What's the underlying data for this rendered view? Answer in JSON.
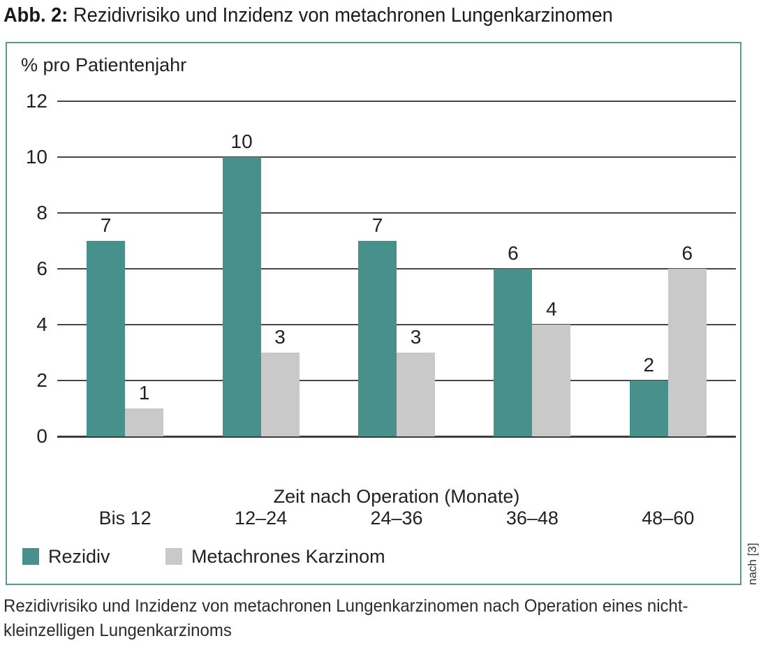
{
  "figure": {
    "label": "Abb. 2:",
    "title": "Rezidivrisiko und Inzidenz von metachronen Lungenkarzinomen",
    "source_note": "nach [3]",
    "caption": "Rezidivrisiko und Inzidenz von metachronen Lungenkarzinomen nach Operation eines nicht-kleinzelligen Lungenkarzinoms"
  },
  "chart_data": {
    "type": "bar",
    "ylabel": "% pro Patientenjahr",
    "xlabel": "Zeit nach Operation (Monate)",
    "categories": [
      "Bis 12",
      "12–24",
      "24–36",
      "36–48",
      "48–60"
    ],
    "series": [
      {
        "name": "Rezidiv",
        "color": "#47908C",
        "values": [
          7,
          10,
          7,
          6,
          2
        ]
      },
      {
        "name": "Metachrones Karzinom",
        "color": "#C9C9C9",
        "values": [
          1,
          3,
          3,
          4,
          6
        ]
      }
    ],
    "ylim": [
      0,
      12
    ],
    "yticks": [
      0,
      2,
      4,
      6,
      8,
      10,
      12
    ],
    "grid": true,
    "value_labels": true,
    "legend_position": "bottom-left"
  },
  "colors": {
    "bar_teal": "#47908C",
    "bar_gray": "#C9C9C9",
    "panel_border": "#569996",
    "gridline": "#464646",
    "text": "#1e1e1e"
  }
}
